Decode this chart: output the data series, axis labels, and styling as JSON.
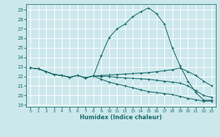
{
  "xlabel": "Humidex (Indice chaleur)",
  "bg_color": "#cce8ec",
  "grid_color": "#ffffff",
  "line_color": "#1a6b6b",
  "xlim": [
    -0.5,
    23.5
  ],
  "ylim": [
    18.8,
    29.6
  ],
  "yticks": [
    19,
    20,
    21,
    22,
    23,
    24,
    25,
    26,
    27,
    28,
    29
  ],
  "xticks": [
    0,
    1,
    2,
    3,
    4,
    5,
    6,
    7,
    8,
    9,
    10,
    11,
    12,
    13,
    14,
    15,
    16,
    17,
    18,
    19,
    20,
    21,
    22,
    23
  ],
  "series": [
    {
      "x": [
        0,
        1,
        2,
        3,
        4,
        5,
        6,
        7,
        8,
        9,
        10,
        11,
        12,
        13,
        14,
        15,
        16,
        17,
        18,
        19,
        20,
        21,
        22,
        23
      ],
      "y": [
        22.9,
        22.8,
        22.5,
        22.2,
        22.1,
        21.9,
        22.1,
        21.85,
        22.05,
        24.2,
        26.1,
        27.0,
        27.5,
        28.3,
        28.8,
        29.2,
        28.6,
        27.5,
        25.0,
        23.1,
        21.5,
        20.3,
        19.5,
        19.5
      ]
    },
    {
      "x": [
        0,
        1,
        2,
        3,
        4,
        5,
        6,
        7,
        8,
        9,
        10,
        11,
        12,
        13,
        14,
        15,
        16,
        17,
        18,
        19,
        20,
        21,
        22,
        23
      ],
      "y": [
        22.9,
        22.8,
        22.5,
        22.2,
        22.1,
        21.9,
        22.1,
        21.85,
        22.05,
        22.1,
        22.15,
        22.2,
        22.25,
        22.3,
        22.35,
        22.4,
        22.5,
        22.6,
        22.7,
        22.9,
        22.5,
        22.1,
        21.5,
        21.0
      ]
    },
    {
      "x": [
        0,
        1,
        2,
        3,
        4,
        5,
        6,
        7,
        8,
        9,
        10,
        11,
        12,
        13,
        14,
        15,
        16,
        17,
        18,
        19,
        20,
        21,
        22,
        23
      ],
      "y": [
        22.9,
        22.8,
        22.5,
        22.2,
        22.1,
        21.9,
        22.1,
        21.85,
        22.05,
        22.0,
        22.0,
        21.9,
        21.85,
        21.8,
        21.75,
        21.7,
        21.6,
        21.5,
        21.4,
        21.3,
        21.0,
        20.5,
        20.0,
        19.8
      ]
    },
    {
      "x": [
        0,
        1,
        2,
        3,
        4,
        5,
        6,
        7,
        8,
        9,
        10,
        11,
        12,
        13,
        14,
        15,
        16,
        17,
        18,
        19,
        20,
        21,
        22,
        23
      ],
      "y": [
        22.9,
        22.8,
        22.5,
        22.2,
        22.1,
        21.9,
        22.1,
        21.85,
        22.05,
        21.7,
        21.4,
        21.2,
        21.0,
        20.8,
        20.6,
        20.4,
        20.3,
        20.2,
        20.1,
        19.9,
        19.7,
        19.55,
        19.4,
        19.4
      ]
    }
  ]
}
